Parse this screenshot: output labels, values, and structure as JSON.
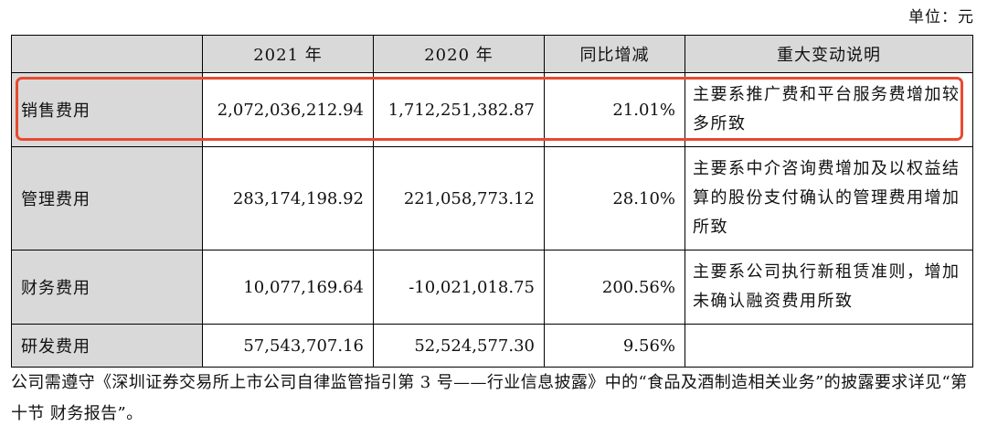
{
  "unit_label": "单位：元",
  "table": {
    "headers": [
      "",
      "2021 年",
      "2020 年",
      "同比增减",
      "重大变动说明"
    ],
    "rows": [
      {
        "item": "销售费用",
        "y2021": "2,072,036,212.94",
        "y2020": "1,712,251,382.87",
        "change": "21.01%",
        "note": "主要系推广费和平台服务费增加较多所致"
      },
      {
        "item": "管理费用",
        "y2021": "283,174,198.92",
        "y2020": "221,058,773.12",
        "change": "28.10%",
        "note": "主要系中介咨询费增加及以权益结算的股份支付确认的管理费用增加所致"
      },
      {
        "item": "财务费用",
        "y2021": "10,077,169.64",
        "y2020": "-10,021,018.75",
        "change": "200.56%",
        "note": "主要系公司执行新租赁准则，增加未确认融资费用所致"
      },
      {
        "item": "研发费用",
        "y2021": "57,543,707.16",
        "y2020": "52,524,577.30",
        "change": "9.56%",
        "note": ""
      }
    ]
  },
  "highlight_color": "#e84a2f",
  "footnote": "公司需遵守《深圳证券交易所上市公司自律监管指引第 3 号——行业信息披露》中的“食品及酒制造相关业务”的披露要求详见“第十节 财务报告”。"
}
